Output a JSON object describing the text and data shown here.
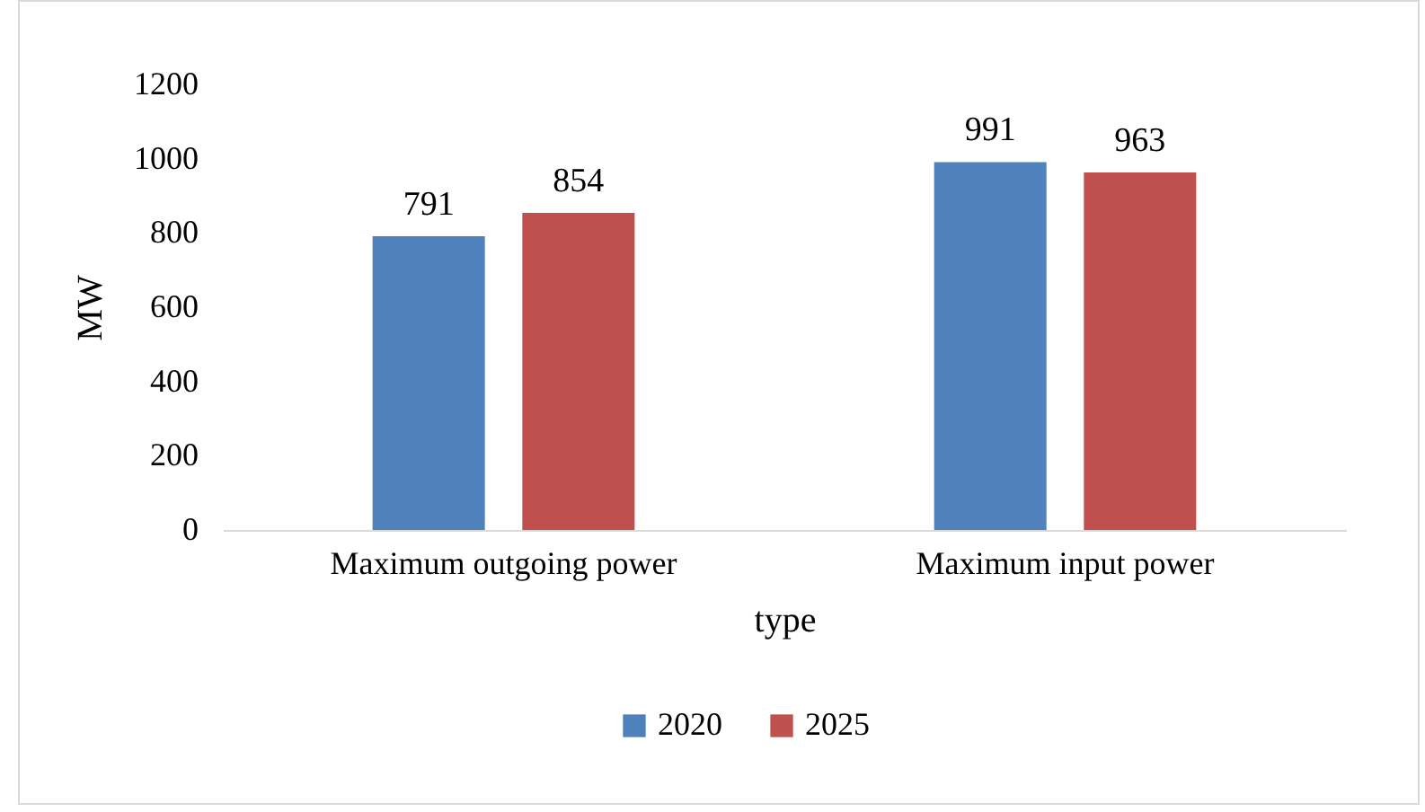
{
  "chart_data": {
    "type": "bar",
    "xlabel": "type",
    "ylabel": "MW",
    "categories": [
      "Maximum outgoing power",
      "Maximum input power"
    ],
    "series": [
      {
        "name": "2020",
        "color": "#4f81bd",
        "values": [
          791,
          991
        ]
      },
      {
        "name": "2025",
        "color": "#c0504d",
        "values": [
          854,
          963
        ]
      }
    ],
    "ylim": [
      0,
      1200
    ],
    "yticks": [
      0,
      200,
      400,
      600,
      800,
      1000,
      1200
    ],
    "data_labels": true,
    "legend": "bottom"
  }
}
